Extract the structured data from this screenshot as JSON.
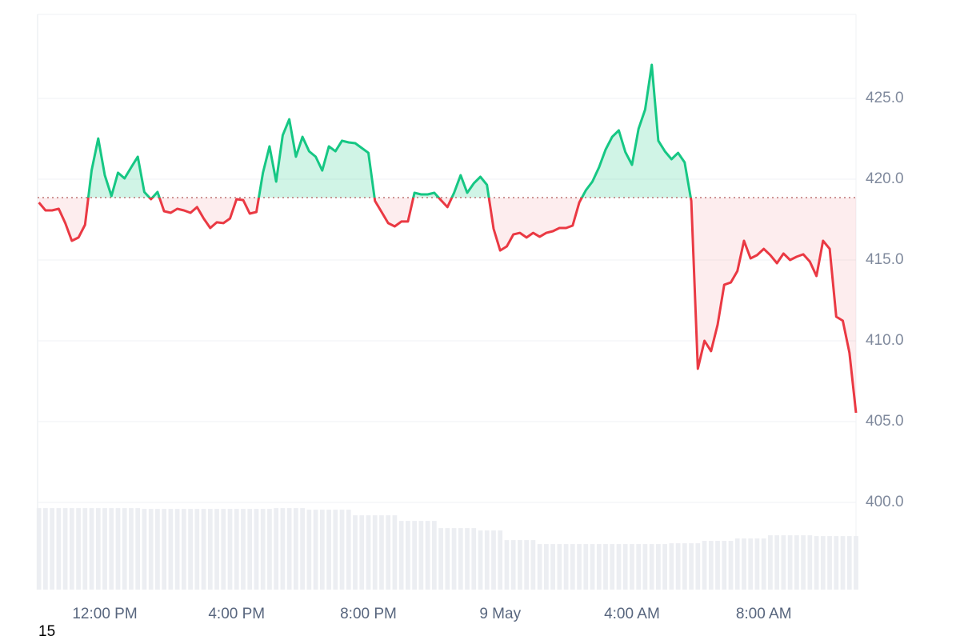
{
  "chart_data": {
    "type": "line",
    "x": [
      -2,
      -1.8,
      -1.6,
      -1.4,
      -1.2,
      -1,
      -0.8,
      -0.6,
      -0.4,
      -0.2,
      0,
      0.2,
      0.4,
      0.6,
      0.8,
      1,
      1.2,
      1.4,
      1.6,
      1.8,
      2,
      2.2,
      2.4,
      2.6,
      2.8,
      3,
      3.2,
      3.4,
      3.6,
      3.8,
      4,
      4.2,
      4.4,
      4.6,
      4.8,
      5,
      5.2,
      5.4,
      5.6,
      5.8,
      6,
      6.2,
      6.4,
      6.6,
      6.8,
      7,
      7.2,
      7.4,
      7.6,
      7.8,
      8,
      8.2,
      8.4,
      8.6,
      8.8,
      9,
      9.2,
      9.4,
      9.6,
      9.8,
      10,
      10.2,
      10.4,
      10.6,
      10.8,
      11,
      11.2,
      11.4,
      11.6,
      11.8,
      12,
      12.2,
      12.4,
      12.6,
      12.8,
      13,
      13.2,
      13.4,
      13.6,
      13.8,
      14,
      14.2,
      14.4,
      14.6,
      14.8,
      15,
      15.2,
      15.4,
      15.6,
      15.8,
      16,
      16.2,
      16.4,
      16.6,
      16.8,
      17,
      17.2,
      17.4,
      17.6,
      17.8,
      18,
      18.2,
      18.4,
      18.6,
      18.8,
      19,
      19.2,
      19.4,
      19.6,
      19.8,
      20,
      20.2,
      20.4,
      20.6,
      20.8,
      21,
      21.2,
      21.4,
      21.6,
      21.8,
      22,
      22.2,
      22.4,
      22.6,
      22.8
    ],
    "values": [
      418.56,
      418.07,
      418.07,
      418.17,
      417.28,
      416.19,
      416.39,
      417.18,
      420.54,
      422.52,
      420.25,
      418.96,
      420.4,
      420.05,
      420.74,
      421.39,
      419.21,
      418.76,
      419.21,
      418.02,
      417.92,
      418.17,
      418.07,
      417.92,
      418.27,
      417.57,
      416.98,
      417.33,
      417.28,
      417.57,
      418.76,
      418.71,
      417.87,
      417.97,
      420.4,
      422.03,
      419.85,
      422.72,
      423.71,
      421.39,
      422.62,
      421.73,
      421.39,
      420.54,
      422.03,
      421.73,
      422.38,
      422.28,
      422.23,
      421.93,
      421.63,
      418.66,
      417.97,
      417.28,
      417.08,
      417.38,
      417.38,
      419.16,
      419.06,
      419.06,
      419.16,
      418.71,
      418.27,
      419.16,
      420.25,
      419.16,
      419.75,
      420.15,
      419.65,
      416.93,
      415.59,
      415.84,
      416.58,
      416.68,
      416.39,
      416.68,
      416.44,
      416.68,
      416.78,
      416.98,
      416.98,
      417.13,
      418.56,
      419.31,
      419.85,
      420.74,
      421.83,
      422.62,
      423.02,
      421.68,
      420.89,
      423.12,
      424.31,
      427.08,
      422.38,
      421.73,
      421.24,
      421.63,
      421.04,
      418.66,
      408.27,
      410,
      409.36,
      410.99,
      413.47,
      413.61,
      414.31,
      416.19,
      415.1,
      415.3,
      415.69,
      415.3,
      414.8,
      415.4,
      415,
      415.2,
      415.35,
      414.9,
      414.01,
      416.19,
      415.69,
      411.49,
      411.24,
      409.26,
      405.54
    ],
    "volume": [
      51,
      51,
      51,
      51,
      51,
      51,
      51,
      51,
      51,
      51,
      51,
      51,
      51,
      51,
      51,
      51,
      50.5,
      50.5,
      50.5,
      50.5,
      50.5,
      50.5,
      50.5,
      50.5,
      50.5,
      50.5,
      50.5,
      50.5,
      50.5,
      50.5,
      50.5,
      50.5,
      50.5,
      50.5,
      50.5,
      50.5,
      51,
      51,
      51,
      51,
      51,
      50,
      50,
      50,
      50,
      50,
      50,
      50,
      46.5,
      46.5,
      46.5,
      46.5,
      46.5,
      46.5,
      46.5,
      43,
      43,
      43,
      43,
      43,
      43,
      38.5,
      38.5,
      38.5,
      38.5,
      38.5,
      38.5,
      37,
      37,
      37,
      37,
      31,
      31,
      31,
      31,
      31,
      28.5,
      28.5,
      28.5,
      28.5,
      28.5,
      28.5,
      28.5,
      28.5,
      28.5,
      28.5,
      28.5,
      28.5,
      28.5,
      28.5,
      28.5,
      28.5,
      28.5,
      28.5,
      28.5,
      28.5,
      29,
      29,
      29,
      29,
      29,
      30.5,
      30.5,
      30.5,
      30.5,
      30.5,
      32,
      32,
      32,
      32,
      32,
      34,
      34,
      34,
      34,
      34,
      34,
      34,
      33.5,
      33.5,
      33.5,
      33.5,
      33.5,
      33.5,
      33.5
    ],
    "volume_lim": [
      0,
      360
    ],
    "baseline": 418.86,
    "up_color": "#16c784",
    "down_color": "#ea3943",
    "volume_color": "#eceef2",
    "xlim": [
      -2.04,
      22.8
    ],
    "xticks": [
      {
        "value": 0,
        "label": "12:00 PM"
      },
      {
        "value": 4,
        "label": "4:00 PM"
      },
      {
        "value": 8,
        "label": "8:00 PM"
      },
      {
        "value": 12,
        "label": "9 May"
      },
      {
        "value": 16,
        "label": "4:00 AM"
      },
      {
        "value": 20,
        "label": "8:00 AM"
      }
    ],
    "ylim": [
      394.6,
      430.2
    ],
    "yticks": [
      {
        "value": 400,
        "label": "400.0"
      },
      {
        "value": 405,
        "label": "405.0"
      },
      {
        "value": 410,
        "label": "410.0"
      },
      {
        "value": 415,
        "label": "415.0"
      },
      {
        "value": 420,
        "label": "420.0"
      },
      {
        "value": 425,
        "label": "425.0"
      }
    ],
    "grid": true,
    "footer_text": "15"
  }
}
